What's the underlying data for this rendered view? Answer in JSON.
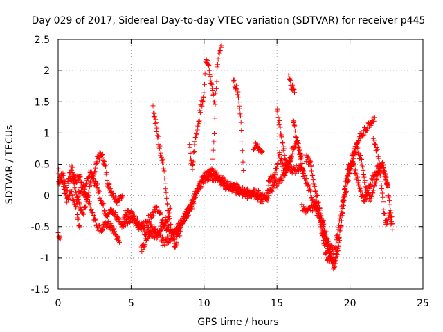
{
  "chart_data": {
    "type": "scatter",
    "title": "Day 029 of 2017, Sidereal Day-to-day VTEC variation (SDTVAR) for receiver p445",
    "xlabel": "GPS time / hours",
    "ylabel": "SDTVAR / TECUs",
    "xlim": [
      0,
      25
    ],
    "ylim": [
      -1.5,
      2.5
    ],
    "grid": true,
    "marker": "+",
    "xticks": [
      0,
      5,
      10,
      15,
      20,
      25
    ],
    "yticks": [
      -1.5,
      -1,
      -0.5,
      0,
      0.5,
      1,
      1.5,
      2,
      2.5
    ],
    "xtick_labels": [
      "0",
      "5",
      "10",
      "15",
      "20",
      "25"
    ],
    "ytick_labels": [
      "-1.5",
      "-1",
      "-0.5",
      "0",
      "0.5",
      "1",
      "1.5",
      "2",
      "2.5"
    ],
    "series": [
      {
        "name": "SDTVAR",
        "color": "#ff0000",
        "tracks": [
          [
            [
              0.0,
              0.2
            ],
            [
              0.3,
              0.35
            ],
            [
              0.6,
              0.1
            ],
            [
              0.9,
              0.45
            ],
            [
              1.2,
              0.25
            ],
            [
              1.5,
              0.3
            ],
            [
              1.8,
              0.1
            ],
            [
              2.1,
              0.35
            ],
            [
              2.4,
              0.3
            ],
            [
              2.7,
              0.6
            ],
            [
              3.0,
              0.65
            ],
            [
              3.2,
              0.5
            ],
            [
              3.4,
              0.2
            ],
            [
              3.6,
              0.1
            ],
            [
              3.8,
              0.0
            ],
            [
              4.1,
              -0.1
            ],
            [
              4.4,
              0.0
            ]
          ],
          [
            [
              0.0,
              0.4
            ],
            [
              0.3,
              0.2
            ],
            [
              0.6,
              -0.1
            ],
            [
              0.9,
              0.05
            ],
            [
              1.2,
              -0.2
            ],
            [
              1.5,
              0.1
            ],
            [
              1.8,
              0.05
            ],
            [
              2.1,
              -0.1
            ],
            [
              2.4,
              -0.3
            ],
            [
              2.7,
              -0.5
            ],
            [
              3.0,
              -0.55
            ],
            [
              3.3,
              -0.45
            ],
            [
              3.6,
              -0.5
            ],
            [
              3.9,
              -0.6
            ],
            [
              4.2,
              -0.75
            ]
          ],
          [
            [
              0.8,
              0.3
            ],
            [
              1.1,
              0.2
            ],
            [
              1.4,
              -0.1
            ],
            [
              1.7,
              -0.3
            ],
            [
              2.0,
              0.0
            ],
            [
              2.3,
              0.25
            ],
            [
              2.6,
              0.2
            ],
            [
              3.0,
              -0.1
            ],
            [
              3.3,
              -0.3
            ],
            [
              3.7,
              -0.25
            ],
            [
              4.0,
              -0.35
            ],
            [
              4.4,
              -0.45
            ],
            [
              4.8,
              -0.4
            ],
            [
              5.2,
              -0.4
            ],
            [
              5.6,
              -0.5
            ],
            [
              6.0,
              -0.45
            ],
            [
              6.4,
              -0.3
            ],
            [
              6.8,
              -0.2
            ],
            [
              7.2,
              -0.45
            ],
            [
              7.6,
              -0.55
            ],
            [
              8.0,
              -0.65
            ],
            [
              8.4,
              -0.45
            ],
            [
              8.8,
              -0.3
            ],
            [
              9.2,
              -0.15
            ],
            [
              9.6,
              0.1
            ],
            [
              10.0,
              0.3
            ],
            [
              10.5,
              0.4
            ],
            [
              11.0,
              0.3
            ],
            [
              11.5,
              0.2
            ],
            [
              12.0,
              0.1
            ],
            [
              12.5,
              0.05
            ],
            [
              13.0,
              0.0
            ],
            [
              13.5,
              0.05
            ],
            [
              14.0,
              0.0
            ],
            [
              14.4,
              -0.05
            ]
          ],
          [
            [
              4.5,
              -0.3
            ],
            [
              5.0,
              -0.3
            ],
            [
              5.5,
              -0.45
            ],
            [
              6.0,
              -0.6
            ],
            [
              6.4,
              -0.5
            ],
            [
              6.8,
              -0.6
            ],
            [
              7.2,
              -0.75
            ],
            [
              7.6,
              -0.7
            ],
            [
              8.0,
              -0.6
            ],
            [
              8.5,
              -0.4
            ],
            [
              9.0,
              -0.2
            ],
            [
              9.5,
              0.1
            ],
            [
              10.0,
              0.25
            ],
            [
              10.5,
              0.3
            ],
            [
              11.0,
              0.25
            ],
            [
              11.5,
              0.15
            ],
            [
              12.0,
              0.15
            ],
            [
              12.5,
              0.1
            ],
            [
              13.0,
              0.05
            ],
            [
              13.5,
              0.0
            ],
            [
              14.0,
              -0.1
            ]
          ],
          [
            [
              5.7,
              -0.85
            ],
            [
              6.0,
              -0.75
            ],
            [
              6.4,
              -0.6
            ],
            [
              6.8,
              -0.65
            ],
            [
              7.2,
              -0.45
            ],
            [
              7.6,
              -0.35
            ],
            [
              8.0,
              -0.8
            ],
            [
              8.4,
              -0.55
            ]
          ],
          [
            [
              6.5,
              1.4
            ],
            [
              6.8,
              1.0
            ],
            [
              7.0,
              0.7
            ],
            [
              7.2,
              0.5
            ],
            [
              7.3,
              0.3
            ],
            [
              7.4,
              0.05
            ],
            [
              7.5,
              -0.15
            ]
          ],
          [
            [
              9.0,
              0.8
            ],
            [
              9.2,
              0.4
            ],
            [
              9.4,
              0.95
            ],
            [
              9.6,
              1.1
            ],
            [
              9.8,
              1.45
            ],
            [
              10.0,
              1.6
            ],
            [
              10.1,
              2.2
            ],
            [
              10.3,
              2.1
            ],
            [
              10.5,
              1.8
            ],
            [
              10.7,
              1.5
            ]
          ],
          [
            [
              10.6,
              0.6
            ],
            [
              10.7,
              1.0
            ],
            [
              10.8,
              1.6
            ],
            [
              10.9,
              2.0
            ],
            [
              11.0,
              2.3
            ],
            [
              11.2,
              2.4
            ]
          ],
          [
            [
              12.0,
              1.85
            ],
            [
              12.3,
              1.65
            ],
            [
              12.5,
              1.3
            ],
            [
              12.6,
              0.9
            ],
            [
              12.7,
              0.4
            ]
          ],
          [
            [
              13.4,
              0.75
            ],
            [
              13.6,
              0.8
            ],
            [
              13.8,
              0.75
            ],
            [
              14.0,
              0.7
            ]
          ],
          [
            [
              14.4,
              0.2
            ],
            [
              14.8,
              0.3
            ],
            [
              15.0,
              0.5
            ],
            [
              15.2,
              0.65
            ],
            [
              15.5,
              0.4
            ],
            [
              15.8,
              0.5
            ],
            [
              16.1,
              0.75
            ],
            [
              16.4,
              0.9
            ],
            [
              16.6,
              0.6
            ],
            [
              16.8,
              0.4
            ]
          ],
          [
            [
              15.0,
              1.4
            ],
            [
              15.2,
              1.1
            ],
            [
              15.4,
              0.8
            ],
            [
              15.6,
              0.55
            ],
            [
              15.8,
              0.45
            ],
            [
              16.0,
              0.6
            ]
          ],
          [
            [
              15.8,
              1.9
            ],
            [
              16.0,
              1.75
            ],
            [
              16.2,
              1.65
            ]
          ],
          [
            [
              14.2,
              0.0
            ],
            [
              14.6,
              0.1
            ],
            [
              15.0,
              0.2
            ],
            [
              15.4,
              0.3
            ],
            [
              15.8,
              0.45
            ],
            [
              16.2,
              0.4
            ],
            [
              16.6,
              0.45
            ],
            [
              16.9,
              0.3
            ],
            [
              17.2,
              0.1
            ],
            [
              17.5,
              -0.1
            ],
            [
              17.8,
              -0.3
            ],
            [
              18.1,
              -0.55
            ],
            [
              18.4,
              -0.75
            ],
            [
              18.7,
              -1.0
            ],
            [
              18.9,
              -1.15
            ],
            [
              19.1,
              -0.95
            ],
            [
              19.3,
              -0.6
            ],
            [
              19.5,
              -0.2
            ],
            [
              19.7,
              0.15
            ],
            [
              20.0,
              0.5
            ],
            [
              20.3,
              0.75
            ],
            [
              20.6,
              0.9
            ],
            [
              20.9,
              1.0
            ],
            [
              21.2,
              1.1
            ],
            [
              21.5,
              1.2
            ],
            [
              21.7,
              1.25
            ]
          ],
          [
            [
              16.7,
              -0.2
            ],
            [
              17.1,
              -0.25
            ],
            [
              17.4,
              -0.2
            ],
            [
              17.7,
              -0.1
            ],
            [
              18.0,
              -0.3
            ],
            [
              18.3,
              -0.55
            ],
            [
              18.6,
              -0.85
            ],
            [
              18.9,
              -1.1
            ],
            [
              19.2,
              -0.85
            ],
            [
              19.4,
              -0.45
            ],
            [
              19.6,
              -0.05
            ],
            [
              19.9,
              0.3
            ],
            [
              20.2,
              0.6
            ],
            [
              20.5,
              0.75
            ],
            [
              20.8,
              0.55
            ],
            [
              21.0,
              0.25
            ],
            [
              21.2,
              0.0
            ],
            [
              21.4,
              -0.05
            ],
            [
              21.6,
              0.05
            ],
            [
              21.8,
              0.25
            ],
            [
              22.0,
              0.4
            ],
            [
              22.2,
              0.5
            ],
            [
              22.4,
              0.35
            ],
            [
              22.6,
              0.15
            ]
          ],
          [
            [
              17.0,
              0.6
            ],
            [
              17.3,
              0.5
            ],
            [
              17.5,
              0.25
            ],
            [
              17.7,
              0.0
            ],
            [
              17.9,
              -0.2
            ],
            [
              18.1,
              -0.45
            ],
            [
              18.3,
              -0.7
            ],
            [
              18.6,
              -0.8
            ],
            [
              18.9,
              -0.9
            ],
            [
              19.1,
              -0.7
            ],
            [
              19.3,
              -0.4
            ],
            [
              19.5,
              -0.1
            ],
            [
              19.7,
              0.2
            ],
            [
              19.9,
              0.45
            ],
            [
              20.2,
              0.5
            ],
            [
              20.4,
              0.35
            ],
            [
              20.6,
              0.2
            ],
            [
              20.8,
              0.0
            ],
            [
              21.0,
              -0.1
            ],
            [
              21.3,
              0.1
            ],
            [
              21.6,
              0.3
            ],
            [
              21.9,
              0.45
            ],
            [
              22.2,
              0.5
            ],
            [
              22.4,
              0.35
            ],
            [
              22.6,
              0.1
            ],
            [
              22.7,
              -0.1
            ],
            [
              22.8,
              -0.3
            ],
            [
              22.9,
              -0.45
            ]
          ],
          [
            [
              17.6,
              -0.15
            ],
            [
              17.9,
              -0.3
            ],
            [
              18.1,
              -0.6
            ],
            [
              18.3,
              -0.9
            ],
            [
              18.5,
              -1.05
            ],
            [
              18.7,
              -1.0
            ]
          ],
          [
            [
              21.6,
              0.9
            ],
            [
              21.9,
              0.7
            ],
            [
              22.1,
              0.3
            ],
            [
              22.3,
              -0.2
            ],
            [
              22.5,
              -0.45
            ],
            [
              22.7,
              -0.3
            ],
            [
              22.9,
              -0.55
            ]
          ],
          [
            [
              16.1,
              1.25
            ],
            [
              16.3,
              0.95
            ],
            [
              16.5,
              0.75
            ],
            [
              16.7,
              0.6
            ],
            [
              16.8,
              0.3
            ]
          ],
          [
            [
              1.3,
              -0.35
            ],
            [
              1.5,
              -0.5
            ]
          ],
          [
            [
              0.0,
              -0.65
            ],
            [
              0.15,
              -0.7
            ]
          ],
          [
            [
              7.5,
              -0.3
            ],
            [
              7.7,
              -0.2
            ]
          ],
          [
            [
              8.8,
              -0.35
            ],
            [
              9.0,
              -0.25
            ]
          ]
        ]
      }
    ]
  }
}
